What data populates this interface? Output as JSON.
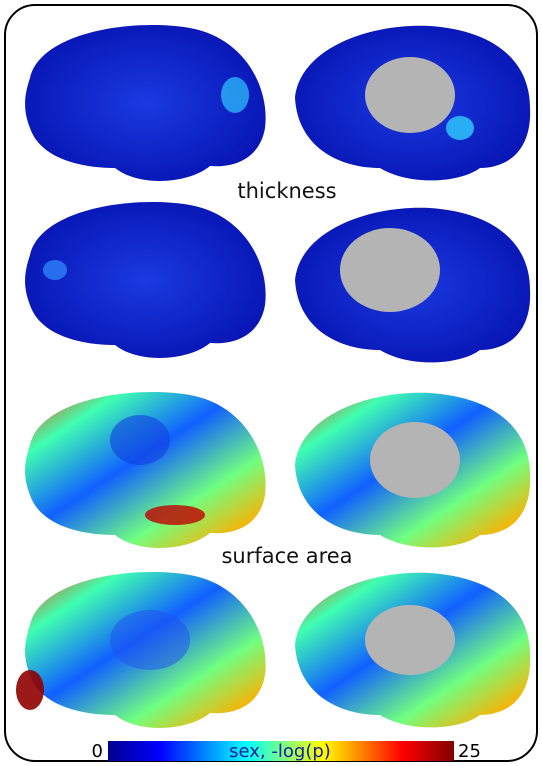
{
  "panels": [
    {
      "label": "thickness"
    },
    {
      "label": "surface area"
    }
  ],
  "colorbar": {
    "label": "sex, -log(p)",
    "min": "0",
    "max": "25"
  }
}
